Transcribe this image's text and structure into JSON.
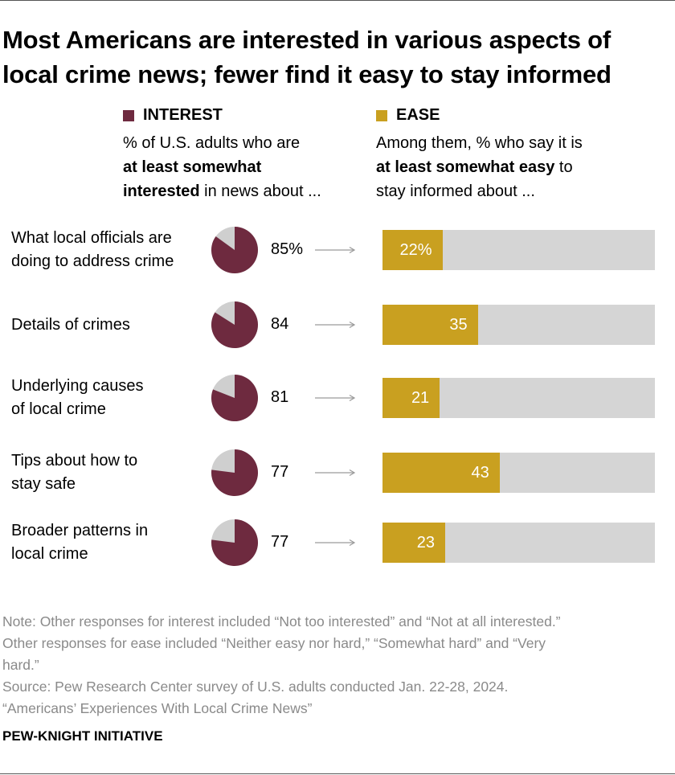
{
  "title_lines": [
    "Most Americans are interested in various aspects of",
    "local crime news; fewer find it easy to stay informed"
  ],
  "legend": {
    "interest": {
      "heading": "INTEREST",
      "line1": "% of U.S. adults who are",
      "line2_bold": "at least somewhat",
      "line3_bold": "interested",
      "line3_rest": " in news about ..."
    },
    "ease": {
      "heading": "EASE",
      "line1": "Among them, % who say it is",
      "line2_bold": "at least somewhat easy",
      "line2_rest": " to",
      "line3": "stay informed about ..."
    }
  },
  "colors": {
    "interest": "#6e2a3f",
    "interest_rest": "#cfcfcf",
    "ease": "#c9a020",
    "ease_rest": "#d5d5d5"
  },
  "chart_data": {
    "type": "bar",
    "categories": [
      [
        "What local officials are",
        "doing to address crime"
      ],
      [
        "Details of crimes"
      ],
      [
        "Underlying causes",
        "of local crime"
      ],
      [
        "Tips about how to",
        "stay safe"
      ],
      [
        "Broader patterns in",
        "local crime"
      ]
    ],
    "series": [
      {
        "name": "INTEREST",
        "values": [
          85,
          84,
          81,
          77,
          77
        ],
        "labels": [
          "85%",
          "84",
          "81",
          "77",
          "77"
        ]
      },
      {
        "name": "EASE",
        "values": [
          22,
          35,
          21,
          43,
          23
        ],
        "labels": [
          "22%",
          "35",
          "21",
          "43",
          "23"
        ]
      }
    ],
    "ylim": [
      0,
      100
    ]
  },
  "notes": [
    "Note: Other responses for interest included “Not too interested” and “Not at all interested.”",
    "Other responses for ease included “Neither easy nor hard,” “Somewhat hard” and “Very",
    "hard.”"
  ],
  "source": [
    "Source: Pew Research Center survey of U.S. adults conducted Jan. 22-28, 2024.",
    "“Americans’ Experiences With Local Crime News”"
  ],
  "brand": "PEW-KNIGHT INITIATIVE"
}
